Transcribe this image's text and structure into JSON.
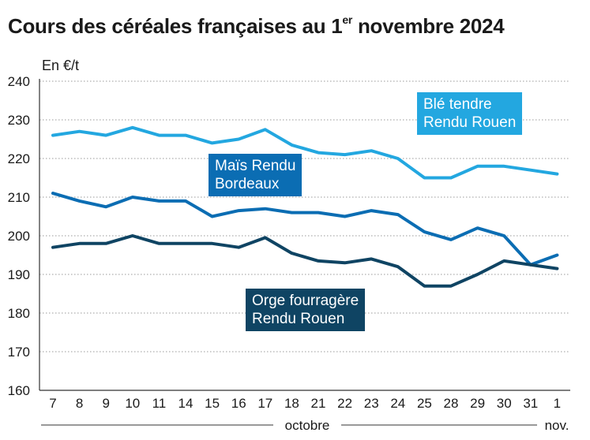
{
  "title_main": "Cours des céréales françaises au 1",
  "title_sup": "er",
  "title_rest": " novembre 2024",
  "chart_data": {
    "type": "line",
    "unit": "En €/t",
    "categories": [
      "7",
      "8",
      "9",
      "10",
      "11",
      "14",
      "15",
      "16",
      "17",
      "18",
      "21",
      "22",
      "23",
      "24",
      "25",
      "28",
      "29",
      "30",
      "31",
      "1"
    ],
    "period_labels": [
      {
        "label": "octobre"
      },
      {
        "label": "nov."
      }
    ],
    "ylim": [
      160,
      240
    ],
    "yticks": [
      160,
      170,
      180,
      190,
      200,
      210,
      220,
      230,
      240
    ],
    "grid": "horizontal dotted",
    "series": [
      {
        "name": "Blé tendre\nRendu Rouen",
        "color": "#23a7e0",
        "values": [
          226,
          227,
          226,
          228,
          226,
          226,
          224,
          225,
          227.5,
          223.5,
          221.5,
          221,
          222,
          220,
          215,
          215,
          218,
          218,
          217,
          216
        ]
      },
      {
        "name": "Maïs Rendu\nBordeaux",
        "color": "#0b6db3",
        "values": [
          211,
          209,
          207.5,
          210,
          209,
          209,
          205,
          206.5,
          207,
          206,
          206,
          205,
          206.5,
          205.5,
          201,
          199,
          202,
          200,
          192.5,
          195
        ]
      },
      {
        "name": "Orge fourragère\nRendu Rouen",
        "color": "#0f4463",
        "values": [
          197,
          198,
          198,
          200,
          198,
          198,
          198,
          197,
          199.5,
          195.5,
          193.5,
          193,
          194,
          192,
          187,
          187,
          190,
          193.5,
          192.5,
          191.5
        ]
      }
    ]
  }
}
